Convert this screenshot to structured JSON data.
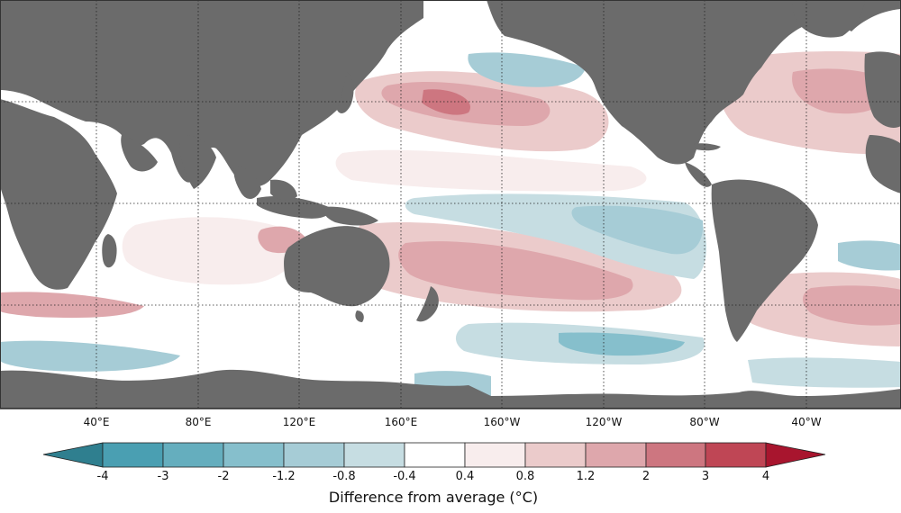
{
  "map": {
    "longitude_labels": [
      "40°E",
      "80°E",
      "120°E",
      "160°E",
      "160°W",
      "120°W",
      "80°W",
      "40°W"
    ],
    "colors": {
      "land": "#6b6b6b",
      "neutral_ocean": "#ffffff",
      "gridline": "#222222"
    }
  },
  "legend": {
    "title": "Difference from average (°C)",
    "tick_labels": [
      "-4",
      "-3",
      "-2",
      "-1.2",
      "-0.8",
      "-0.4",
      "0.4",
      "0.8",
      "1.2",
      "2",
      "3",
      "4"
    ],
    "bins": [
      {
        "from": "-4",
        "to": "-3",
        "color": "#4a9fb2"
      },
      {
        "from": "-3",
        "to": "-2",
        "color": "#65aebe"
      },
      {
        "from": "-2",
        "to": "-1.2",
        "color": "#86bfcc"
      },
      {
        "from": "-1.2",
        "to": "-0.8",
        "color": "#a6ccd6"
      },
      {
        "from": "-0.8",
        "to": "-0.4",
        "color": "#c6dde2"
      },
      {
        "from": "-0.4",
        "to": "0.4",
        "color": "#ffffff"
      },
      {
        "from": "0.4",
        "to": "0.8",
        "color": "#f8eded"
      },
      {
        "from": "0.8",
        "to": "1.2",
        "color": "#ebcbcb"
      },
      {
        "from": "1.2",
        "to": "2",
        "color": "#dea7ac"
      },
      {
        "from": "2",
        "to": "3",
        "color": "#cd7680"
      },
      {
        "from": "3",
        "to": "4",
        "color": "#bf4655"
      }
    ],
    "under_color": "#2f7f8f",
    "over_color": "#a8152e"
  }
}
